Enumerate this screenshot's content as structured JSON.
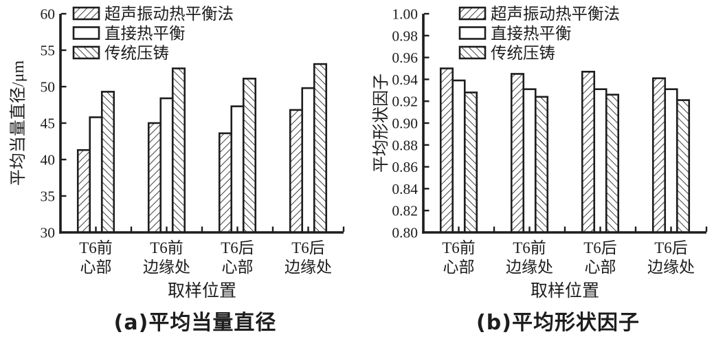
{
  "page": {
    "background": "#ffffff",
    "ink": "#1d1d1d"
  },
  "chart_data": [
    {
      "id": "a",
      "type": "bar",
      "caption": "(a)平均当量直径",
      "ylabel": "平均当量直径/μm",
      "xlabel": "取样位置",
      "ylim": [
        30,
        60
      ],
      "ytick_step": 5,
      "ytick_decimals": 0,
      "grid": false,
      "legend_position": "top-left",
      "categories": [
        [
          "T6前",
          "心部"
        ],
        [
          "T6前",
          "边缘处"
        ],
        [
          "T6后",
          "心部"
        ],
        [
          "T6后",
          "边缘处"
        ]
      ],
      "series": [
        {
          "name": "超声振动热平衡法",
          "hatch": "fwd",
          "values": [
            41.3,
            45.0,
            43.6,
            46.8
          ]
        },
        {
          "name": "直接热平衡",
          "hatch": "none",
          "values": [
            45.8,
            48.4,
            47.3,
            49.8
          ]
        },
        {
          "name": "传统压铸",
          "hatch": "bwd",
          "values": [
            49.3,
            52.5,
            51.1,
            53.1
          ]
        }
      ]
    },
    {
      "id": "b",
      "type": "bar",
      "caption": "(b)平均形状因子",
      "ylabel": "平均形状因子",
      "xlabel": "取样位置",
      "ylim": [
        0.8,
        1.0
      ],
      "ytick_step": 0.02,
      "ytick_decimals": 2,
      "grid": false,
      "legend_position": "top-left",
      "categories": [
        [
          "T6前",
          "心部"
        ],
        [
          "T6前",
          "边缘处"
        ],
        [
          "T6后",
          "心部"
        ],
        [
          "T6后",
          "边缘处"
        ]
      ],
      "series": [
        {
          "name": "超声振动热平衡法",
          "hatch": "fwd",
          "values": [
            0.95,
            0.945,
            0.947,
            0.941
          ]
        },
        {
          "name": "直接热平衡",
          "hatch": "none",
          "values": [
            0.939,
            0.931,
            0.931,
            0.931
          ]
        },
        {
          "name": "传统压铸",
          "hatch": "bwd",
          "values": [
            0.928,
            0.924,
            0.926,
            0.921
          ]
        }
      ]
    }
  ]
}
